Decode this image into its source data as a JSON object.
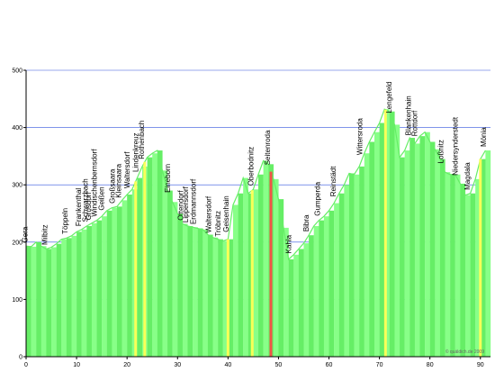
{
  "chart_data": {
    "type": "area",
    "title": "",
    "xlabel": "",
    "ylabel": "",
    "xlim": [
      0,
      92
    ],
    "ylim": [
      0,
      500
    ],
    "x_ticks": [
      0,
      10,
      20,
      30,
      40,
      50,
      60,
      70,
      80,
      90
    ],
    "y_ticks": [
      0,
      100,
      200,
      300,
      400,
      500
    ],
    "grid": true,
    "fill_color": "#66ee66",
    "line_color": "#88ff88",
    "axis_color": "#000000",
    "grid_color": "#3355dd",
    "highlight_yellow": "#ffff55",
    "highlight_red": "#ff4444",
    "copyright": "© quäldich.de 2009",
    "series": [
      {
        "x": [
          0,
          1,
          2,
          3,
          4,
          5,
          6,
          7,
          8,
          9,
          10,
          11,
          12,
          13,
          14,
          15,
          16,
          17,
          18,
          19,
          20,
          21,
          22,
          23,
          24,
          25,
          26,
          27,
          28,
          29,
          30,
          31,
          32,
          33,
          34,
          35,
          36,
          37,
          38,
          39,
          40,
          41,
          42,
          43,
          44,
          45,
          46,
          47,
          48,
          49,
          50,
          51,
          52,
          53,
          54,
          55,
          56,
          57,
          58,
          59,
          60,
          61,
          62,
          63,
          64,
          65,
          66,
          67,
          68,
          69,
          70,
          71,
          72,
          73,
          74,
          75,
          76,
          77,
          78,
          79,
          80,
          81,
          82,
          83,
          84,
          85,
          86,
          87,
          88,
          89,
          90,
          91
        ],
        "values": [
          193,
          192,
          200,
          193,
          188,
          191,
          197,
          205,
          207,
          211,
          218,
          222,
          228,
          233,
          238,
          245,
          255,
          260,
          262,
          273,
          283,
          292,
          312,
          332,
          348,
          355,
          360,
          325,
          290,
          270,
          250,
          232,
          228,
          226,
          224,
          222,
          213,
          208,
          205,
          202,
          205,
          265,
          285,
          312,
          285,
          292,
          318,
          342,
          336,
          310,
          275,
          225,
          170,
          178,
          188,
          198,
          212,
          228,
          238,
          245,
          255,
          268,
          285,
          300,
          320,
          318,
          332,
          355,
          375,
          392,
          408,
          432,
          428,
          405,
          348,
          360,
          382,
          372,
          385,
          392,
          375,
          362,
          345,
          322,
          318,
          318,
          302,
          282,
          285,
          310,
          345,
          360
        ]
      }
    ],
    "highlights": [
      {
        "x": 21.7,
        "color": "yellow"
      },
      {
        "x": 23.5,
        "color": "yellow"
      },
      {
        "x": 40.0,
        "color": "yellow"
      },
      {
        "x": 44.8,
        "color": "yellow"
      },
      {
        "x": 48.5,
        "color": "red"
      },
      {
        "x": 71.2,
        "color": "yellow"
      },
      {
        "x": 90.0,
        "color": "yellow"
      }
    ],
    "annotations": [
      {
        "x": 0.3,
        "label": "Gera"
      },
      {
        "x": 4.2,
        "label": "Milbitz"
      },
      {
        "x": 8.2,
        "label": "Töppeln"
      },
      {
        "x": 10.9,
        "label": "Frankenthal"
      },
      {
        "x": 12.2,
        "label": "Schwarzbach"
      },
      {
        "x": 12.8,
        "label": "Grosdorf"
      },
      {
        "x": 14.0,
        "label": "Windischenbernsdorf"
      },
      {
        "x": 15.4,
        "label": "Geißen"
      },
      {
        "x": 17.6,
        "label": "Großsaara"
      },
      {
        "x": 18.8,
        "label": "Kleinsaara"
      },
      {
        "x": 20.5,
        "label": "Waltersdorf"
      },
      {
        "x": 22.2,
        "label": "Lindenkreuz"
      },
      {
        "x": 23.4,
        "label": "Rothenbach"
      },
      {
        "x": 28.5,
        "label": "Eineborn"
      },
      {
        "x": 31.1,
        "label": "Ottendorf"
      },
      {
        "x": 32.1,
        "label": "Lippersdorf"
      },
      {
        "x": 33.6,
        "label": "Erdmannsdorf"
      },
      {
        "x": 36.6,
        "label": "Waltersdorf"
      },
      {
        "x": 38.5,
        "label": "Tröbnitz"
      },
      {
        "x": 40.1,
        "label": "Geisenhain"
      },
      {
        "x": 45.0,
        "label": "Oberbodnitz"
      },
      {
        "x": 48.3,
        "label": "Seitenroda"
      },
      {
        "x": 52.5,
        "label": "Kahla"
      },
      {
        "x": 56.0,
        "label": "Bibra"
      },
      {
        "x": 58.2,
        "label": "Gumperda"
      },
      {
        "x": 61.3,
        "label": "Reinstädt"
      },
      {
        "x": 66.6,
        "label": "Wittersroda"
      },
      {
        "x": 72.4,
        "label": "Lengefeld"
      },
      {
        "x": 76.2,
        "label": "Blankenhain"
      },
      {
        "x": 77.5,
        "label": "Rottdorf"
      },
      {
        "x": 82.6,
        "label": "Loßnitz"
      },
      {
        "x": 85.5,
        "label": "Niedersynderstedt"
      },
      {
        "x": 87.9,
        "label": "Magdala"
      },
      {
        "x": 91.1,
        "label": "Mönia"
      }
    ]
  }
}
